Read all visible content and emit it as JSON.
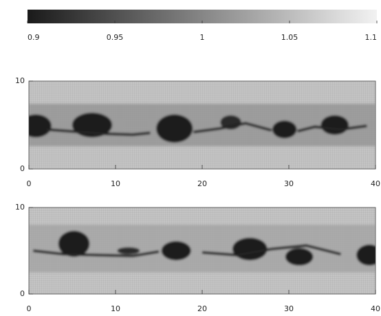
{
  "chart_data": [
    {
      "type": "colorbar",
      "clim": [
        0.9,
        1.1
      ],
      "ticks": [
        0.9,
        0.95,
        1,
        1.05,
        1.1
      ],
      "colors": [
        "#1a1a1a",
        "#f2f2f2"
      ]
    },
    {
      "type": "heatmap",
      "xlim": [
        0,
        40
      ],
      "ylim": [
        0,
        10
      ],
      "xticks": [
        0,
        10,
        20,
        30,
        40
      ],
      "yticks": [
        0,
        10
      ]
    },
    {
      "type": "heatmap",
      "xlim": [
        0,
        40
      ],
      "ylim": [
        0,
        10
      ],
      "xticks": [
        0,
        10,
        20,
        30,
        40
      ],
      "yticks": [
        0,
        10
      ]
    }
  ]
}
